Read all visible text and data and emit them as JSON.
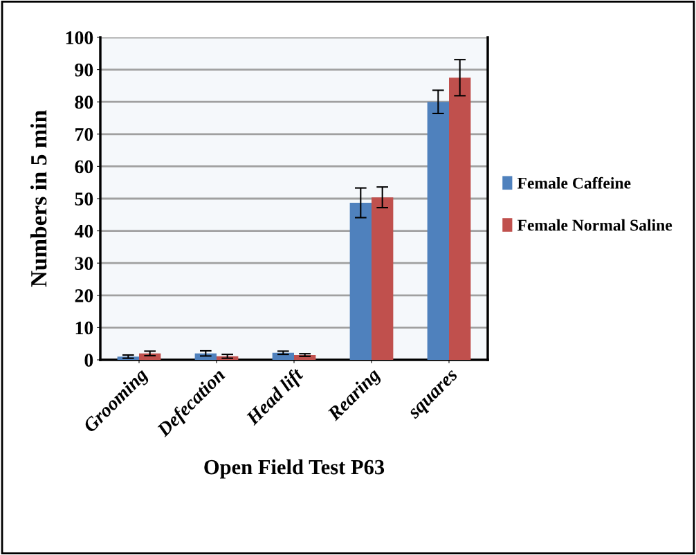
{
  "chart_data": {
    "type": "bar",
    "xlabel": "Open Field Test P63",
    "ylabel": "Numbers in 5 min",
    "categories": [
      "Grooming",
      "Defecation",
      "Head lift",
      "Rearing",
      "squares"
    ],
    "series": [
      {
        "name": "Female Caffeine",
        "color": "#4f81bd",
        "values": [
          1.0,
          2.0,
          2.2,
          48.7,
          80.0
        ],
        "errors": [
          0.5,
          0.8,
          0.5,
          4.6,
          3.6
        ]
      },
      {
        "name": "Female Normal Saline",
        "color": "#c0504d",
        "values": [
          2.0,
          1.1,
          1.5,
          50.4,
          87.5
        ],
        "errors": [
          0.7,
          0.6,
          0.4,
          3.2,
          5.6
        ]
      }
    ],
    "ylim": [
      0,
      100
    ],
    "yticks": [
      0,
      10,
      20,
      30,
      40,
      50,
      60,
      70,
      80,
      90,
      100
    ],
    "grid": "y",
    "legend": "right"
  }
}
